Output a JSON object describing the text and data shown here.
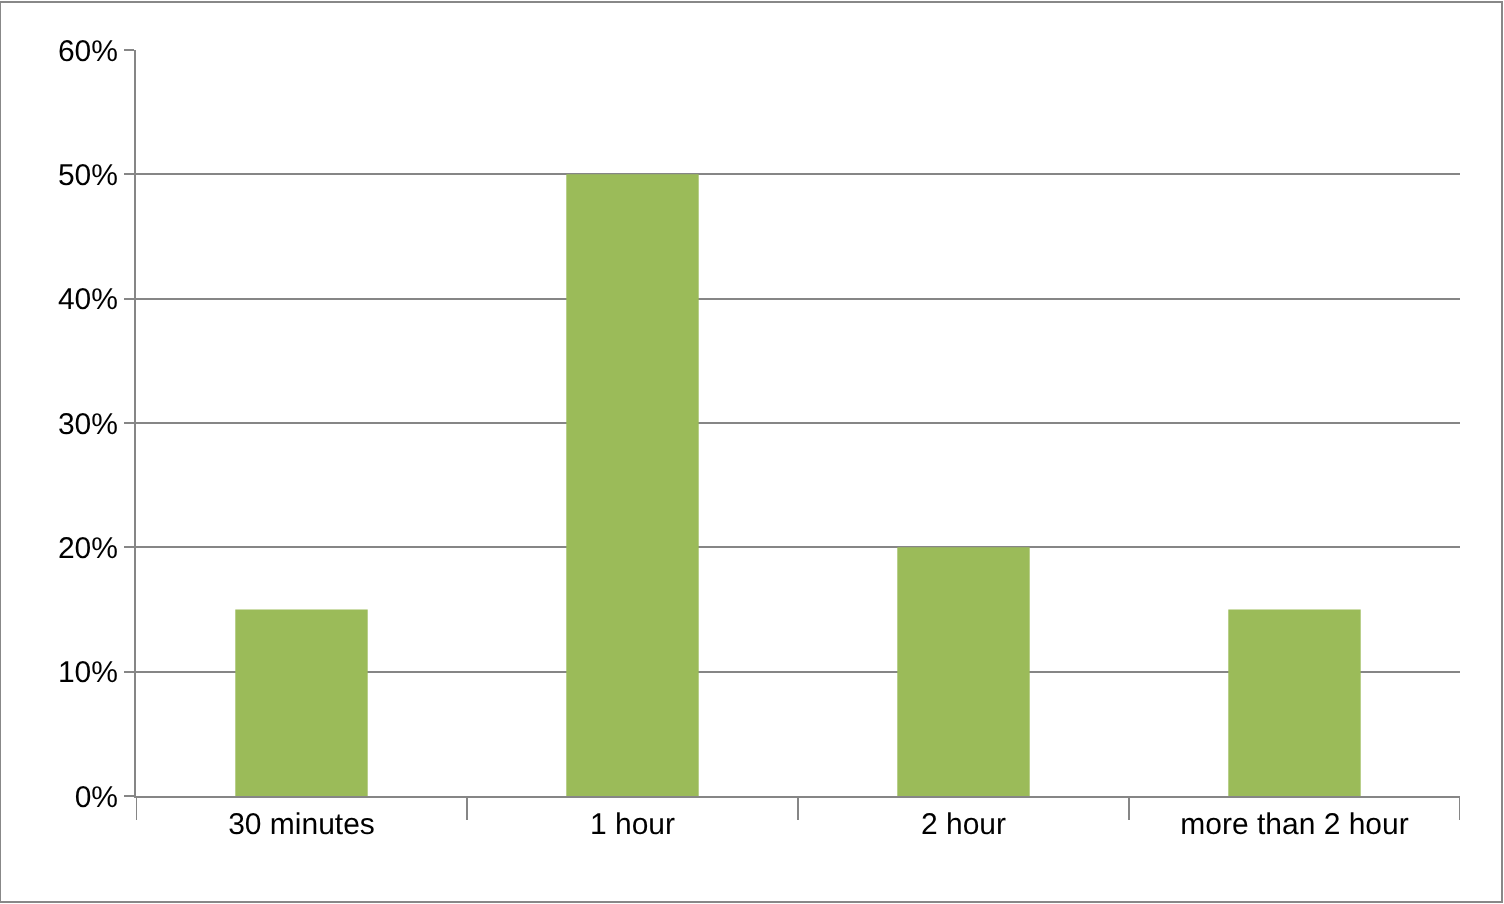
{
  "chart_data": {
    "type": "bar",
    "categories": [
      "30 minutes",
      "1 hour",
      "2 hour",
      "more than 2 hour"
    ],
    "values": [
      15,
      50,
      20,
      15
    ],
    "color": "#9bbb59",
    "ylim": [
      0,
      60
    ],
    "yticks": [
      {
        "value": 0,
        "label": "0%"
      },
      {
        "value": 10,
        "label": "10%"
      },
      {
        "value": 20,
        "label": "20%"
      },
      {
        "value": 30,
        "label": "30%"
      },
      {
        "value": 40,
        "label": "40%"
      },
      {
        "value": 50,
        "label": "50%"
      },
      {
        "value": 60,
        "label": "60%"
      }
    ],
    "grid": "y"
  }
}
